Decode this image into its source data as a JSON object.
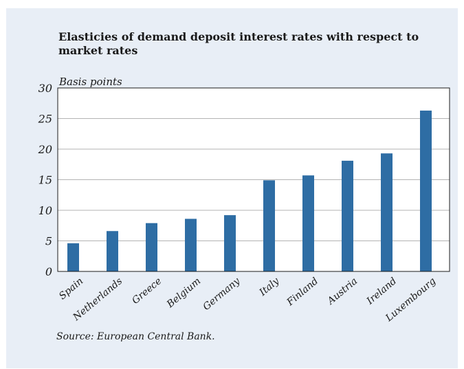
{
  "chart_data": {
    "type": "bar",
    "title": "Elasticies of demand deposit interest rates with respect to market rates",
    "ylabel": "Basis points",
    "xlabel": "",
    "categories": [
      "Spain",
      "Netherlands",
      "Greece",
      "Belgium",
      "Germany",
      "Italy",
      "Finland",
      "Austria",
      "Ireland",
      "Luxembourg"
    ],
    "values": [
      4.6,
      6.6,
      7.9,
      8.6,
      9.2,
      14.9,
      15.7,
      18.1,
      19.3,
      26.3
    ],
    "ylim": [
      0,
      30
    ],
    "yticks": [
      "0",
      "5",
      "10",
      "15",
      "20",
      "25",
      "30"
    ],
    "grid": true,
    "bar_color": "#2e6da4",
    "source": "Source: European Central Bank."
  }
}
